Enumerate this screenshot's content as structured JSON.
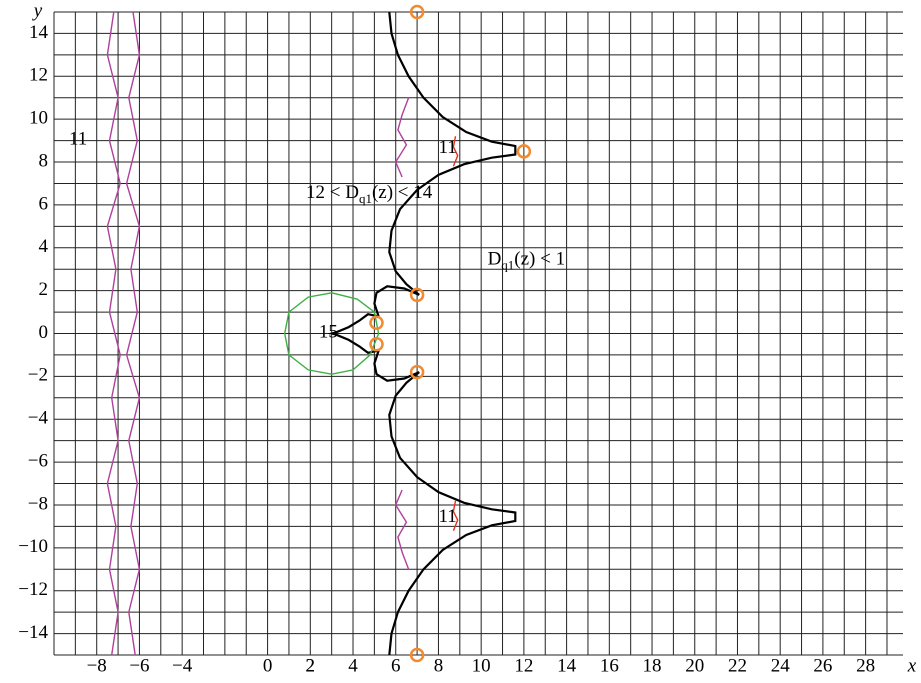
{
  "chart_data": {
    "type": "line",
    "xlabel": "x",
    "ylabel": "y",
    "xlim": [
      -10,
      29.75
    ],
    "ylim": [
      -15,
      15
    ],
    "xticks": [
      {
        "value": -8,
        "label": "−8"
      },
      {
        "value": -6,
        "label": "−6"
      },
      {
        "value": -4,
        "label": "−4"
      },
      2,
      0,
      2,
      4,
      6,
      8,
      10,
      12,
      14,
      16,
      18,
      20,
      22,
      24,
      26,
      28
    ],
    "yticks": [
      {
        "value": -14,
        "label": "−14"
      },
      {
        "value": -12,
        "label": "−12"
      },
      {
        "value": -10,
        "label": "−10"
      },
      {
        "value": -8,
        "label": "−8"
      },
      {
        "value": -6,
        "label": "−6"
      },
      {
        "value": -4,
        "label": "−4"
      },
      {
        "value": -2,
        "label": "−2"
      },
      0,
      2,
      4,
      6,
      8,
      10,
      12,
      14
    ],
    "grid": true,
    "xgrid": [
      -10,
      -9,
      -8,
      -7,
      -6,
      -5,
      -4,
      -3,
      -2,
      -1,
      0,
      1,
      2,
      3,
      4,
      5,
      6,
      7,
      8,
      9,
      10,
      11,
      12,
      13,
      14,
      15,
      16,
      17,
      18,
      19,
      20,
      21,
      22,
      23,
      24,
      25,
      26,
      27,
      28,
      29
    ],
    "ygrid": [
      -15,
      -14,
      -13,
      -12,
      -11,
      -10,
      -9,
      -8,
      -7,
      -6,
      -5,
      -4,
      -3,
      -2,
      -1,
      0,
      1,
      2,
      3,
      4,
      5,
      6,
      7,
      8,
      9,
      10,
      11,
      12,
      13,
      14,
      15
    ],
    "annotations": [
      {
        "text": "11"
      },
      {
        "text": "11"
      },
      {
        "text": "11"
      },
      {
        "text": "15"
      },
      {
        "text": "12 < D",
        "sub": "q1",
        "after": "(z) < 14"
      },
      {
        "text": "D",
        "sub": "q1",
        "after": "(z) < 1"
      }
    ],
    "series": [
      {
        "color": "#000000",
        "mode": "line",
        "x": [
          5.7,
          5.8,
          6.1,
          6.6,
          7.3,
          8.2,
          9.3,
          10.5,
          11.6,
          11.6,
          10.5,
          9.2,
          8,
          7,
          6.2,
          5.8,
          5.7,
          6,
          6.5,
          7.1,
          6.4,
          5.6,
          5.1,
          5,
          5.2,
          4.7,
          4.3,
          3.8,
          3.2,
          3,
          3.2,
          3.8,
          4.3,
          4.7,
          5.2,
          5,
          5.1,
          5.6,
          6.4,
          7.1,
          6.5,
          6,
          5.7,
          5.8,
          6.2,
          7,
          8,
          9.2,
          10.5,
          11.6,
          11.6,
          10.5,
          9.3,
          8.2,
          7.3,
          6.6,
          6.1,
          5.8,
          5.7
        ],
        "values": [
          15,
          14,
          13,
          12,
          11,
          10.1,
          9.4,
          8.95,
          8.75,
          8.35,
          8.2,
          7.9,
          7.4,
          6.7,
          5.8,
          4.8,
          3.8,
          2.9,
          2.3,
          1.8,
          2.1,
          2.2,
          1.9,
          1.4,
          0.8,
          0.9,
          0.6,
          0.3,
          0.05,
          0,
          -0.05,
          -0.3,
          -0.6,
          -0.9,
          -0.8,
          -1.4,
          -1.9,
          -2.2,
          -2.1,
          -1.8,
          -2.3,
          -2.9,
          -3.8,
          -4.8,
          -5.8,
          -6.7,
          -7.4,
          -7.9,
          -8.2,
          -8.35,
          -8.75,
          -8.95,
          -9.4,
          -10.1,
          -11,
          -12,
          -13,
          -14,
          -15
        ]
      },
      {
        "color": "#b0409c",
        "mode": "line",
        "x": [
          -7.2,
          -7.5,
          -7.0,
          -7.4,
          -6.9,
          -7.5,
          -7.1,
          -7.4,
          -6.9,
          -7.3,
          -7.0,
          -7.5,
          -7.1,
          -7.4,
          -7.0,
          -7.3
        ],
        "values": [
          15,
          13,
          11,
          9,
          7,
          5,
          3,
          1,
          -1,
          -3,
          -5,
          -7,
          -9,
          -11,
          -13,
          -15
        ]
      },
      {
        "color": "#b0409c",
        "mode": "line",
        "x": [
          -6.3,
          -6.0,
          -6.5,
          -6.1,
          -6.6,
          -6.0,
          -6.4,
          -6.1,
          -6.6,
          -6.0,
          -6.5,
          -6.1,
          -6.4,
          -6.0,
          -6.5,
          -6.2
        ],
        "values": [
          15,
          13,
          11,
          9,
          7,
          5,
          3,
          1,
          -1,
          -3,
          -5,
          -7,
          -9,
          -11,
          -13,
          -15
        ]
      },
      {
        "color": "#b0409c",
        "mode": "line",
        "x": [
          6.6,
          6.3,
          6.1,
          6.5,
          6.0,
          6.3,
          null,
          6.3,
          6.0,
          6.5,
          6.1,
          6.3,
          6.6
        ],
        "values": [
          11,
          10.2,
          9.5,
          8.8,
          8,
          7.3,
          null,
          -7.3,
          -8,
          -8.8,
          -9.5,
          -10.2,
          -11
        ]
      },
      {
        "color": "#e03020",
        "mode": "line",
        "x": [
          8.8,
          8.7,
          8.9,
          8.7,
          null,
          8.8,
          8.7,
          8.9,
          8.7
        ],
        "values": [
          9.2,
          8.7,
          8.3,
          7.8,
          null,
          -7.8,
          -8.3,
          -8.7,
          -9.2
        ]
      },
      {
        "color": "#3cb043",
        "mode": "line",
        "x": [
          3,
          4.2,
          5,
          5.2,
          4.8,
          4,
          3,
          1.9,
          1,
          0.8,
          1,
          1.9,
          3
        ],
        "values": [
          1.9,
          1.6,
          1,
          0,
          -1,
          -1.7,
          -1.9,
          -1.7,
          -1,
          0,
          1,
          1.7,
          1.9
        ]
      },
      {
        "color": "#f28a30",
        "mode": "markers",
        "x": [
          12,
          7,
          7,
          5.1,
          5.1,
          7,
          7
        ],
        "values": [
          8.5,
          1.8,
          -1.8,
          0.5,
          -0.5,
          15,
          -15
        ]
      }
    ]
  }
}
